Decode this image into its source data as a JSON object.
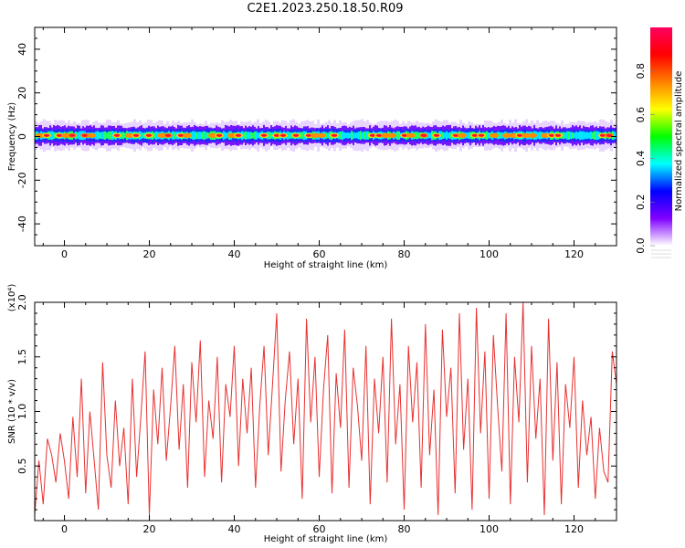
{
  "title": "C2E1.2023.250.18.50.R09",
  "chart_data": [
    {
      "type": "heatmap",
      "xlabel": "Height of straight line (km)",
      "ylabel": "Frequency (Hz)",
      "xlim": [
        -7,
        130
      ],
      "ylim": [
        -50,
        50
      ],
      "x_ticks": [
        0,
        20,
        40,
        60,
        80,
        100,
        120
      ],
      "y_ticks": [
        -40,
        -20,
        0,
        20,
        40
      ],
      "band": {
        "center_hz": 0.5,
        "core_halfwidth_hz": 2.5,
        "envelope_halfwidth_hz": 5,
        "peak_amplitude": 1.0
      },
      "colorbar": {
        "label": "Normalized spectral amplitude",
        "range": [
          0.0,
          1.0
        ],
        "ticks": [
          0.0,
          0.2,
          0.4,
          0.6,
          0.8
        ],
        "colors": [
          "#ffffff",
          "#8000ff",
          "#0000ff",
          "#00ffff",
          "#00ff00",
          "#ffff00",
          "#ff8000",
          "#ff0000",
          "#ff0060"
        ]
      }
    },
    {
      "type": "line",
      "xlabel": "Height of straight line (km)",
      "ylabel": "SNR (10 * v/v)",
      "y_multiplier": "(x10⁴)",
      "xlim": [
        -7,
        130
      ],
      "ylim": [
        0,
        2.0
      ],
      "x_ticks": [
        0,
        20,
        40,
        60,
        80,
        100,
        120
      ],
      "y_ticks": [
        0.5,
        1.0,
        1.5,
        2.0
      ],
      "color": "#e83030",
      "x": [
        -7,
        -6,
        -5,
        -4,
        -3,
        -2,
        -1,
        0,
        1,
        2,
        3,
        4,
        5,
        6,
        7,
        8,
        9,
        10,
        11,
        12,
        13,
        14,
        15,
        16,
        17,
        18,
        19,
        20,
        21,
        22,
        23,
        24,
        25,
        26,
        27,
        28,
        29,
        30,
        31,
        32,
        33,
        34,
        35,
        36,
        37,
        38,
        39,
        40,
        41,
        42,
        43,
        44,
        45,
        46,
        47,
        48,
        49,
        50,
        51,
        52,
        53,
        54,
        55,
        56,
        57,
        58,
        59,
        60,
        61,
        62,
        63,
        64,
        65,
        66,
        67,
        68,
        69,
        70,
        71,
        72,
        73,
        74,
        75,
        76,
        77,
        78,
        79,
        80,
        81,
        82,
        83,
        84,
        85,
        86,
        87,
        88,
        89,
        90,
        91,
        92,
        93,
        94,
        95,
        96,
        97,
        98,
        99,
        100,
        101,
        102,
        103,
        104,
        105,
        106,
        107,
        108,
        109,
        110,
        111,
        112,
        113,
        114,
        115,
        116,
        117,
        118,
        119,
        120,
        121,
        122,
        123,
        124,
        125,
        126,
        127,
        128,
        129,
        130
      ],
      "y": [
        0.05,
        0.55,
        0.15,
        0.75,
        0.6,
        0.35,
        0.8,
        0.55,
        0.2,
        0.95,
        0.4,
        1.3,
        0.25,
        1.0,
        0.55,
        0.1,
        1.45,
        0.6,
        0.3,
        1.1,
        0.5,
        0.85,
        0.15,
        1.3,
        0.4,
        0.95,
        1.55,
        0.05,
        1.2,
        0.7,
        1.4,
        0.55,
        1.05,
        1.6,
        0.65,
        1.25,
        0.3,
        1.45,
        0.9,
        1.65,
        0.4,
        1.1,
        0.75,
        1.5,
        0.35,
        1.25,
        0.95,
        1.6,
        0.5,
        1.3,
        0.8,
        1.4,
        0.3,
        1.05,
        1.6,
        0.6,
        1.25,
        1.9,
        0.45,
        1.1,
        1.55,
        0.7,
        1.3,
        0.2,
        1.85,
        0.9,
        1.5,
        0.4,
        1.2,
        1.7,
        0.25,
        1.35,
        0.85,
        1.75,
        0.3,
        1.4,
        1.05,
        0.55,
        1.6,
        0.15,
        1.3,
        0.8,
        1.5,
        0.35,
        1.85,
        0.7,
        1.25,
        0.1,
        1.6,
        0.9,
        1.45,
        0.3,
        1.8,
        0.6,
        1.2,
        0.05,
        1.75,
        0.95,
        1.4,
        0.25,
        1.9,
        0.65,
        1.3,
        0.1,
        1.95,
        0.8,
        1.55,
        0.2,
        1.7,
        1.05,
        0.45,
        1.9,
        0.15,
        1.5,
        0.9,
        2.0,
        0.35,
        1.6,
        0.75,
        1.3,
        0.05,
        1.85,
        0.55,
        1.45,
        0.15,
        1.25,
        0.85,
        1.5,
        0.3,
        1.1,
        0.6,
        0.95,
        0.2,
        0.85,
        0.45,
        0.35,
        1.55,
        1.25
      ]
    }
  ]
}
